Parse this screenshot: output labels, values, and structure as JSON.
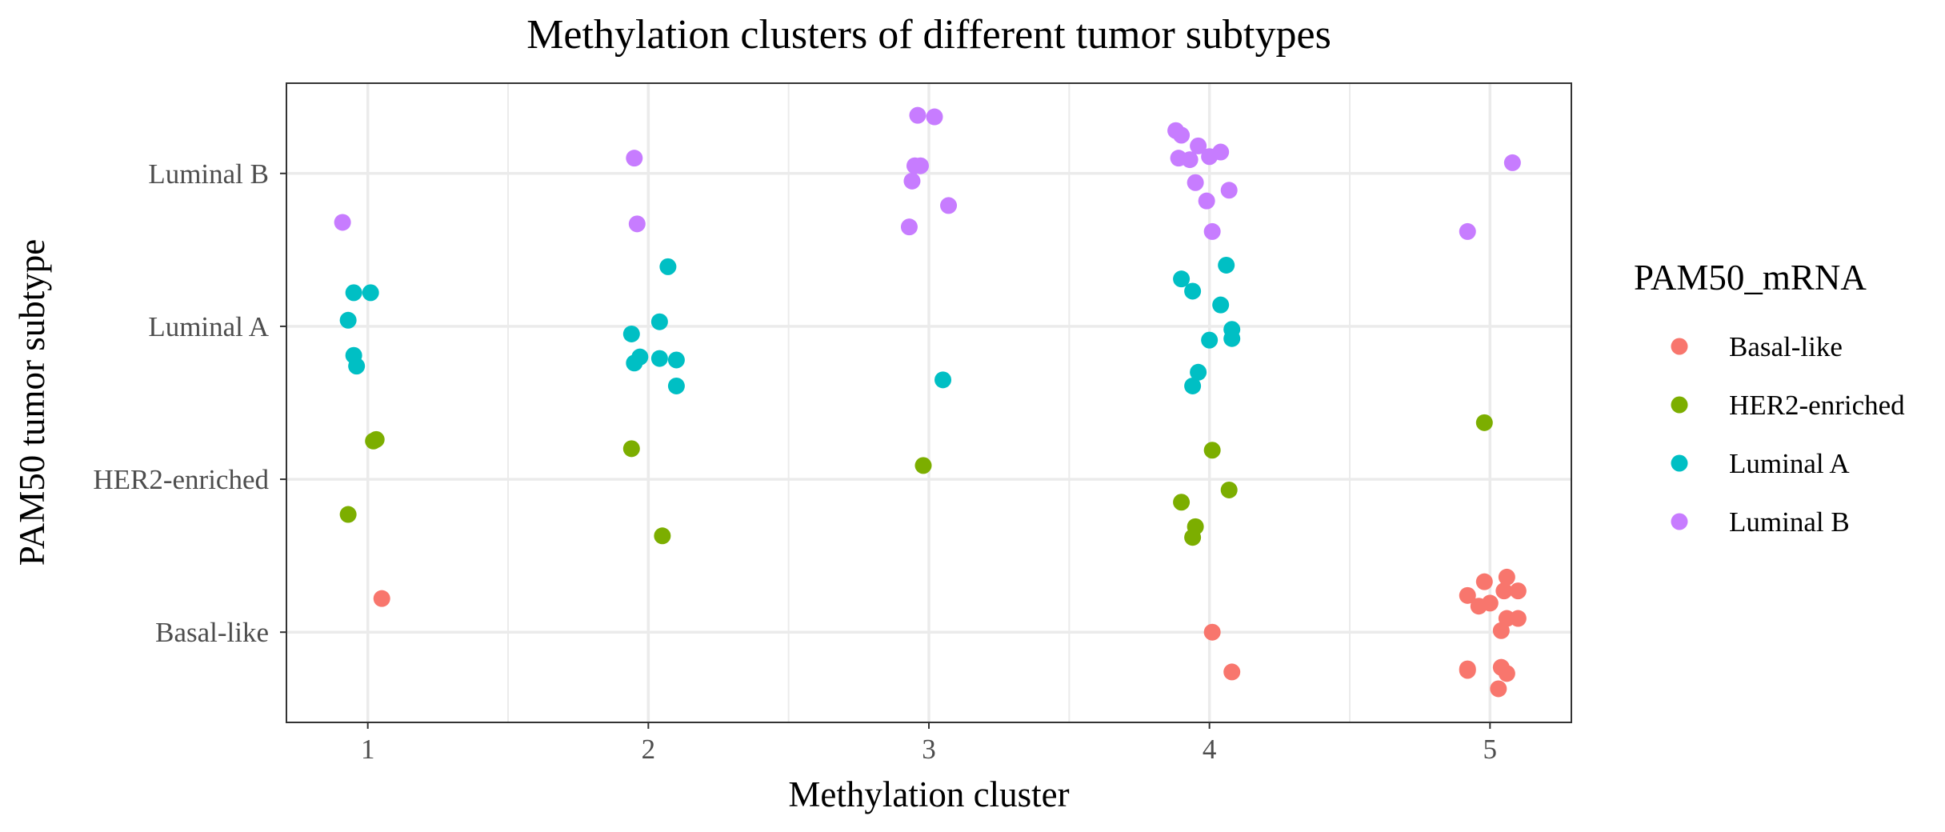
{
  "chart_data": {
    "type": "scatter",
    "title": "Methylation clusters of different tumor subtypes",
    "xlabel": "Methylation cluster",
    "ylabel": "PAM50 tumor subtype",
    "x_ticks": [
      "1",
      "2",
      "3",
      "4",
      "5"
    ],
    "y_categories": [
      "Basal-like",
      "HER2-enriched",
      "Luminal A",
      "Luminal B"
    ],
    "xlim": [
      0.71,
      5.29
    ],
    "ylim": [
      0.41,
      4.59
    ],
    "grid": true,
    "jitter": true,
    "legend": {
      "title": "PAM50_mRNA",
      "position": "right",
      "entries": [
        "Basal-like",
        "HER2-enriched",
        "Luminal A",
        "Luminal B"
      ]
    },
    "colors": {
      "Basal-like": "#F8766D",
      "HER2-enriched": "#7CAE00",
      "Luminal A": "#00BFC4",
      "Luminal B": "#C77CFF"
    },
    "series": [
      {
        "name": "Basal-like",
        "points": [
          [
            1.05,
            1.22
          ],
          [
            4.01,
            1.0
          ],
          [
            4.08,
            0.74
          ],
          [
            4.92,
            1.24
          ],
          [
            4.96,
            1.17
          ],
          [
            4.98,
            1.33
          ],
          [
            5.0,
            1.19
          ],
          [
            5.06,
            1.36
          ],
          [
            5.05,
            1.27
          ],
          [
            5.1,
            1.27
          ],
          [
            5.04,
            1.01
          ],
          [
            5.06,
            1.09
          ],
          [
            5.1,
            1.09
          ],
          [
            4.92,
            0.76
          ],
          [
            4.92,
            0.75
          ],
          [
            5.04,
            0.77
          ],
          [
            5.06,
            0.73
          ],
          [
            5.03,
            0.63
          ]
        ]
      },
      {
        "name": "HER2-enriched",
        "points": [
          [
            0.93,
            1.77
          ],
          [
            1.02,
            2.25
          ],
          [
            1.03,
            2.26
          ],
          [
            1.94,
            2.2
          ],
          [
            2.05,
            1.63
          ],
          [
            2.98,
            2.09
          ],
          [
            3.9,
            1.85
          ],
          [
            3.94,
            1.62
          ],
          [
            3.95,
            1.69
          ],
          [
            4.01,
            2.19
          ],
          [
            4.07,
            1.93
          ],
          [
            4.98,
            2.37
          ]
        ]
      },
      {
        "name": "Luminal A",
        "points": [
          [
            0.93,
            3.04
          ],
          [
            0.95,
            3.22
          ],
          [
            0.95,
            2.81
          ],
          [
            0.96,
            2.74
          ],
          [
            1.01,
            3.22
          ],
          [
            1.94,
            2.95
          ],
          [
            1.95,
            2.76
          ],
          [
            1.97,
            2.8
          ],
          [
            2.04,
            3.03
          ],
          [
            2.04,
            2.79
          ],
          [
            2.07,
            3.39
          ],
          [
            2.1,
            2.61
          ],
          [
            2.1,
            2.78
          ],
          [
            3.05,
            2.65
          ],
          [
            3.9,
            3.31
          ],
          [
            3.94,
            3.23
          ],
          [
            3.94,
            2.61
          ],
          [
            3.96,
            2.7
          ],
          [
            4.0,
            2.91
          ],
          [
            4.04,
            3.14
          ],
          [
            4.06,
            3.4
          ],
          [
            4.08,
            2.98
          ],
          [
            4.08,
            2.92
          ]
        ]
      },
      {
        "name": "Luminal B",
        "points": [
          [
            0.91,
            3.68
          ],
          [
            1.95,
            4.1
          ],
          [
            1.96,
            3.67
          ],
          [
            2.93,
            3.65
          ],
          [
            2.94,
            3.95
          ],
          [
            2.95,
            4.05
          ],
          [
            2.96,
            4.38
          ],
          [
            2.97,
            4.05
          ],
          [
            3.02,
            4.37
          ],
          [
            3.07,
            3.79
          ],
          [
            3.88,
            4.28
          ],
          [
            3.89,
            4.1
          ],
          [
            3.9,
            4.25
          ],
          [
            3.93,
            4.09
          ],
          [
            3.95,
            3.94
          ],
          [
            3.96,
            4.18
          ],
          [
            3.99,
            3.82
          ],
          [
            4.0,
            4.11
          ],
          [
            4.01,
            3.62
          ],
          [
            4.04,
            4.14
          ],
          [
            4.07,
            3.89
          ],
          [
            4.92,
            3.62
          ],
          [
            5.08,
            4.07
          ]
        ]
      }
    ]
  }
}
